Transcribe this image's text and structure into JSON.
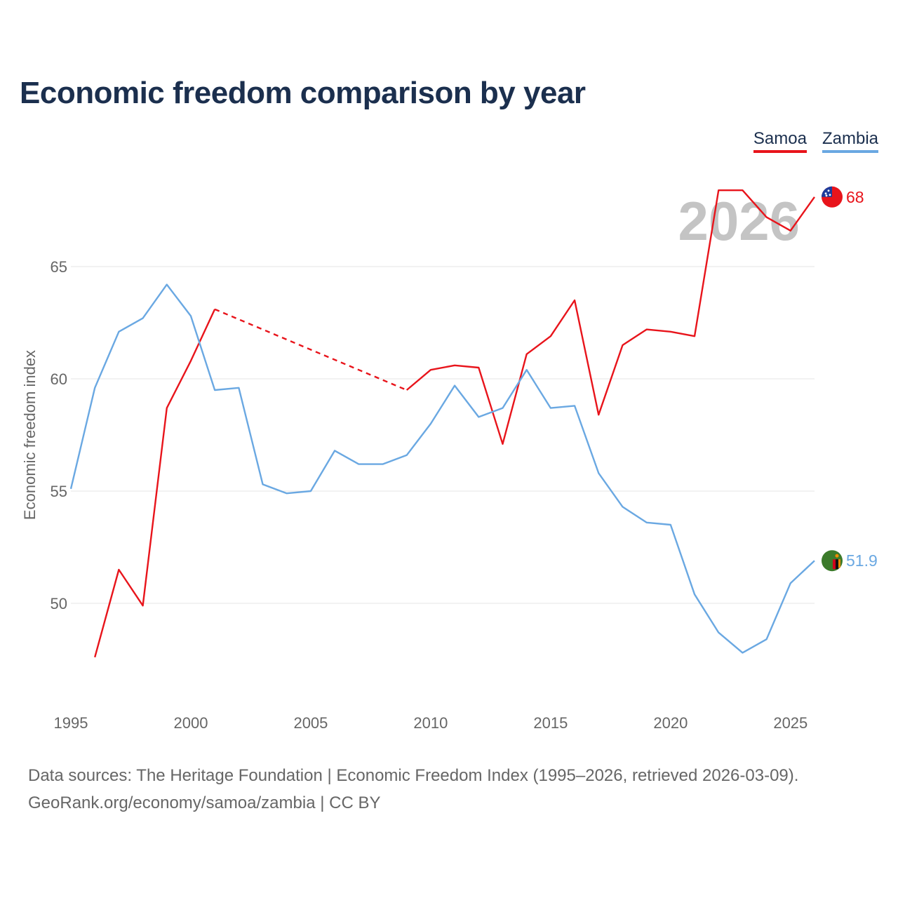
{
  "title": "Economic freedom comparison by year",
  "legend": [
    {
      "name": "Samoa",
      "color": "#e8141b"
    },
    {
      "name": "Zambia",
      "color": "#6aa8e2"
    }
  ],
  "footer": {
    "sources": "Data sources: The Heritage Foundation | Economic Freedom Index (1995–2026, retrieved 2026-03-09).",
    "credit": "GeoRank.org/economy/samoa/zambia | CC BY"
  },
  "chart_data": {
    "type": "line",
    "title": "Economic freedom comparison by year",
    "ylabel": "Economic freedom index",
    "xlabel": "",
    "xlim": [
      1995,
      2026
    ],
    "ylim": [
      46,
      69
    ],
    "x_ticks": [
      1995,
      2000,
      2005,
      2010,
      2015,
      2020,
      2025
    ],
    "y_ticks": [
      50,
      55,
      60,
      65
    ],
    "grid": true,
    "year_watermark": "2026",
    "series": [
      {
        "name": "Samoa",
        "color": "#e8141b",
        "end_label": "68",
        "icon": "samoa-flag-icon",
        "points": [
          [
            1996,
            47.6
          ],
          [
            1997,
            51.5
          ],
          [
            1998,
            49.9
          ],
          [
            1999,
            58.7
          ],
          [
            2000,
            60.8
          ],
          [
            2001,
            63.1
          ],
          [
            2009,
            59.5
          ],
          [
            2010,
            60.4
          ],
          [
            2011,
            60.6
          ],
          [
            2012,
            60.5
          ],
          [
            2013,
            57.1
          ],
          [
            2014,
            61.1
          ],
          [
            2015,
            61.9
          ],
          [
            2016,
            63.5
          ],
          [
            2017,
            58.4
          ],
          [
            2018,
            61.5
          ],
          [
            2019,
            62.2
          ],
          [
            2020,
            62.1
          ],
          [
            2021,
            61.9
          ],
          [
            2022,
            68.4
          ],
          [
            2023,
            68.4
          ],
          [
            2024,
            67.2
          ],
          [
            2025,
            66.6
          ],
          [
            2026,
            68.1
          ]
        ],
        "gaps": [
          [
            2001,
            2009
          ]
        ]
      },
      {
        "name": "Zambia",
        "color": "#6aa8e2",
        "end_label": "51.9",
        "icon": "zambia-flag-icon",
        "points": [
          [
            1995,
            55.1
          ],
          [
            1996,
            59.6
          ],
          [
            1997,
            62.1
          ],
          [
            1998,
            62.7
          ],
          [
            1999,
            64.2
          ],
          [
            2000,
            62.8
          ],
          [
            2001,
            59.5
          ],
          [
            2002,
            59.6
          ],
          [
            2003,
            55.3
          ],
          [
            2004,
            54.9
          ],
          [
            2005,
            55.0
          ],
          [
            2006,
            56.8
          ],
          [
            2007,
            56.2
          ],
          [
            2008,
            56.2
          ],
          [
            2009,
            56.6
          ],
          [
            2010,
            58.0
          ],
          [
            2011,
            59.7
          ],
          [
            2012,
            58.3
          ],
          [
            2013,
            58.7
          ],
          [
            2014,
            60.4
          ],
          [
            2015,
            58.7
          ],
          [
            2016,
            58.8
          ],
          [
            2017,
            55.8
          ],
          [
            2018,
            54.3
          ],
          [
            2019,
            53.6
          ],
          [
            2020,
            53.5
          ],
          [
            2021,
            50.4
          ],
          [
            2022,
            48.7
          ],
          [
            2023,
            47.8
          ],
          [
            2024,
            48.4
          ],
          [
            2025,
            50.9
          ],
          [
            2026,
            51.9
          ]
        ],
        "gaps": []
      }
    ]
  }
}
